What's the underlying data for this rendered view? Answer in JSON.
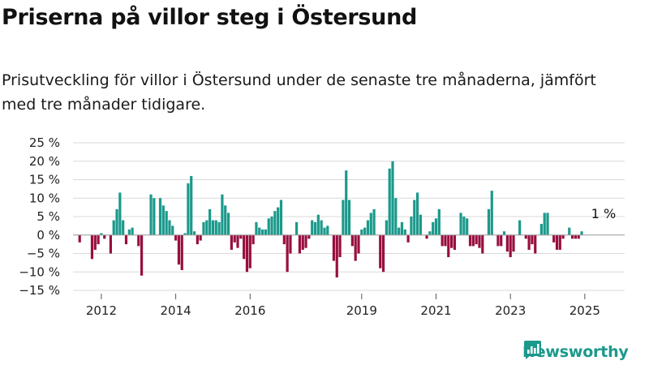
{
  "title": "Priserna på villor steg i Östersund",
  "subtitle": "Prisutveckling för villor i Östersund under de senaste tre månaderna, jämfört med tre månader tidigare.",
  "brand": "Newsworthy",
  "colors": {
    "positive": "#1b998b",
    "negative": "#980f3f",
    "grid": "#d9d9d9",
    "text": "#222222"
  },
  "chart_data": {
    "type": "bar",
    "title": "Priserna på villor steg i Östersund",
    "ylabel": "",
    "xlabel": "",
    "ylim": [
      -15,
      25
    ],
    "yticks": [
      -15,
      -10,
      -5,
      0,
      5,
      10,
      15,
      20,
      25
    ],
    "ytick_labels": [
      "−15 %",
      "−10 %",
      "−5 %",
      "0 %",
      "5 %",
      "10 %",
      "15 %",
      "20 %",
      "25 %"
    ],
    "xticks": [
      {
        "label": "2012",
        "index": 7
      },
      {
        "label": "2014",
        "index": 31
      },
      {
        "label": "2016",
        "index": 55
      },
      {
        "label": "2019",
        "index": 91
      },
      {
        "label": "2021",
        "index": 115
      },
      {
        "label": "2023",
        "index": 139
      },
      {
        "label": "2025",
        "index": 163
      }
    ],
    "annotation": "1 %",
    "grid": true,
    "values": [
      -2,
      0,
      0,
      0,
      -6.5,
      -4,
      -2.5,
      0.5,
      -1,
      0,
      -5,
      4,
      7,
      11.5,
      4,
      -2.5,
      1.5,
      2,
      0,
      -3,
      -11,
      0,
      0,
      11,
      10,
      0,
      10,
      8,
      6.5,
      4,
      2.5,
      -1.5,
      -8,
      -9.5,
      0.5,
      14,
      16,
      1,
      -2.5,
      -1.5,
      3.5,
      4,
      7,
      4,
      4,
      3.5,
      11,
      8,
      6,
      -4,
      -2,
      -3.5,
      -1,
      -6.5,
      -10,
      -9,
      -2.5,
      3.5,
      2,
      1.5,
      1.5,
      4.5,
      5,
      6.5,
      7.5,
      9.5,
      -2.5,
      -10,
      -5,
      0,
      3.5,
      -5,
      -4,
      -3.5,
      -1,
      4,
      3.5,
      5.5,
      4,
      2,
      2.5,
      0,
      -7,
      -11.5,
      -6,
      9.5,
      17.5,
      9.5,
      -3,
      -7,
      -5,
      1.5,
      2,
      4,
      6,
      7,
      0,
      -9,
      -10,
      4,
      18,
      20,
      10,
      2,
      3.5,
      1.5,
      -2,
      5,
      9.5,
      11.5,
      5.5,
      0,
      -1,
      1,
      3.5,
      4.5,
      7,
      -3,
      -3,
      -6,
      -3.5,
      -4,
      0,
      6,
      5,
      4.5,
      -3,
      -3,
      -2.5,
      -3.5,
      -5,
      0,
      7,
      12,
      0,
      -3,
      -3,
      1,
      -4.5,
      -6,
      -4.5,
      0,
      4,
      0,
      -1,
      -4,
      -2.5,
      -5,
      0,
      3,
      6,
      6,
      0,
      -2,
      -4,
      -4,
      -1,
      0,
      2,
      -1,
      -1,
      -1,
      1
    ]
  }
}
